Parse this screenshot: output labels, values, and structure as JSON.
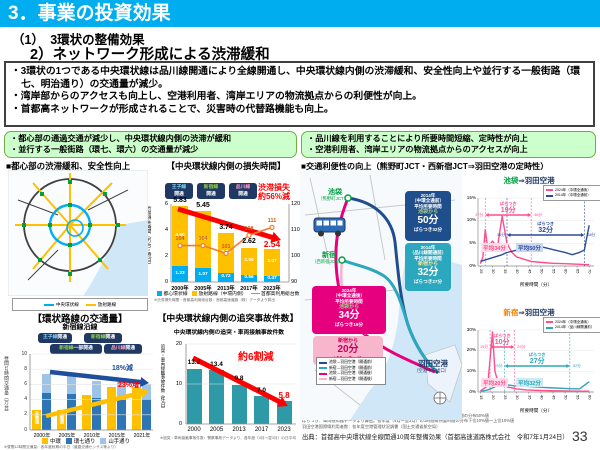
{
  "header": {
    "title": "3．事業の投資効果"
  },
  "subtitles": {
    "line1": "（1）　3環状の整備効果",
    "line2": "2）ネットワーク形成による渋滞緩和"
  },
  "summary": {
    "bullets": [
      "・3環状の1つである中央環状線は品川線開通により全線開通し、中央環状線内側の渋滞緩和、安全性向上や並行する一般街路（環七、明治通り）の交通量が減少。",
      "・湾岸部からのアクセスも向上し、空港利用者、湾岸エリアの物流拠点からの利便性が向上。",
      "・首都高ネットワークが形成されることで、災害時の代替路機能も向上。"
    ]
  },
  "left_panel": {
    "highlight_box": [
      "・都心部の通過交通が減少し、中央環状線内側の渋滞が緩和",
      "・並行する一般街路（環七、環六）の交通量が減少"
    ],
    "map_heading": "■都心部の渋滞緩和、安全性向上",
    "map_legend": [
      {
        "label": "中央環状線",
        "color": "#00AEEF"
      },
      {
        "label": "放射路線",
        "color": "#FFC000"
      }
    ]
  },
  "right_panel": {
    "highlight_box": [
      "・品川線を利用することにより所要時間短縮、定時性が向上",
      "・空港利用者、湾岸エリアの物流拠点からのアクセスが向上"
    ],
    "heading": "■交通利便性の向上（熊野町JCT・西新宿JCT⇒羽田空港の定時性）",
    "map": {
      "labels": {
        "ikebukuro": {
          "name": "池袋",
          "sub": "（熊野町JCT）",
          "color": "#00A040"
        },
        "shinjuku": {
          "name": "新宿",
          "sub": "（西新宿JCT）",
          "color": "#00A040"
        },
        "haneda": {
          "name": "羽田空港",
          "sub": "（空港中央出口）",
          "color": "#1F3864"
        }
      },
      "boxes": [
        {
          "year": "2014年",
          "cond": "（中環全通前）",
          "label": "平均所要時間",
          "from": "池袋から",
          "value": "50分",
          "spread": "ばらつき32分",
          "bg": "#1F4E8C",
          "fg": "#FFFFFF",
          "from_color": "#A9D18E"
        },
        {
          "year": "2014年",
          "cond": "（品川線開通前）",
          "label": "平均所要時間",
          "from": "新宿から",
          "value": "32分",
          "spread": "ばらつき27分",
          "bg": "#2BA7BE",
          "fg": "#FFFFFF",
          "from_color": "#FFE699"
        },
        {
          "year": "2024年",
          "cond": "（中環全通後）",
          "label": "平均所要時間",
          "from": "池袋から",
          "value": "34分",
          "spread": "ばらつき19分",
          "bg": "#E6007E",
          "fg": "#FFFFFF",
          "from_color": "#A9D18E"
        },
        {
          "from": "新宿から",
          "value": "20分",
          "spread": "ばらつき10分",
          "bg": "#F7B6CC",
          "fg": "#C7005F",
          "from_color": "#C7005F"
        }
      ],
      "legend": [
        {
          "label": "池袋→羽田空港（開通前）",
          "color": "#1F4E8C"
        },
        {
          "label": "新宿→羽田空港（開通前）",
          "color": "#2BA7BE"
        },
        {
          "label": "池袋→羽田空港（開通後）",
          "color": "#E6007E"
        },
        {
          "label": "新宿→羽田空港（開通後）",
          "color": "#F7B6CC"
        }
      ]
    },
    "footnotes": [
      "平均所要時間：車両感知器データより算出。各年度（4月～翌3月）の1時間毎所要時間の分布50%値",
      "ばらつき：車両感知器データより算出。各年度（4月～翌3月）の1時間毎所要時間の分布下位10%値～上位10%値",
      "羽田空港国際線利用者数：各年度空港管理状況調書（国土交通省航空局）"
    ]
  },
  "source": "出典：首都高中央環状線全線開通10周年整備効果（首都高速道路株式会社　令和7年1月24日）",
  "page_number": "33",
  "chart_data": [
    {
      "id": "ring-road-traffic",
      "type": "bar",
      "title": "【環状路線の交通量】",
      "subtitle": "新宿線沿線",
      "ylabel": "昼間12時間交通量（万台）",
      "ylim": [
        0,
        10
      ],
      "categories": [
        "2000年",
        "2005年",
        "2010年",
        "2015年",
        "2021年"
      ],
      "series": [
        {
          "name": "中環",
          "color": "#FFC000",
          "values": [
            null,
            null,
            4.6,
            5.6,
            5.7
          ],
          "bar_note": "未開通"
        },
        {
          "name": "環七通り",
          "color": "#2E75B6",
          "values": [
            4.9,
            4.8,
            4.2,
            4.2,
            4.1
          ]
        },
        {
          "name": "山手通り",
          "color": "#9DC3E6",
          "values": [
            2.5,
            2.5,
            2.3,
            2.1,
            2.0
          ]
        }
      ],
      "annotations": [
        {
          "name": "王子線",
          "suffix": "開通",
          "color": "#7FD1F5"
        },
        {
          "name": "新宿線",
          "suffix": "開通",
          "color": "#92D050"
        },
        {
          "name": "新宿線",
          "suffix": "一部開通",
          "color": "#92D050"
        },
        {
          "name": "品川線",
          "suffix": "開通",
          "color": "#FF9EC8"
        }
      ],
      "arrow_notes": [
        {
          "text": "18%減",
          "color": "#1F4E9C"
        },
        {
          "text": "23%増",
          "color": "#FF0000"
        }
      ],
      "footnote": "※昼間12時間交通量：各年度秋期の平日（道路交通センサス等より）"
    },
    {
      "id": "inner-loss-time",
      "type": "bar+line",
      "title": "【中央環状線内側の損失時間】",
      "ylabel_left": "渋滞損失時間（万台・時/日）",
      "ylabel_right": "首都高利用総台数（万台/日）",
      "ylim_left": [
        0,
        6
      ],
      "ylim_right": [
        90,
        120
      ],
      "categories": [
        "2000年",
        "2005年",
        "2013年",
        "2017年",
        "2023年"
      ],
      "series": [
        {
          "name": "都心環状線",
          "color": "#00AEEF",
          "values": [
            1.23,
            1.07,
            0.72,
            0.56,
            0.47
          ],
          "labels": [
            "1.23",
            "1.07",
            "0.72",
            "0.56",
            "0.47"
          ]
        },
        {
          "name": "放射路線（中環内側）",
          "color": "#FFC000",
          "values": [
            4.6,
            4.38,
            3.02,
            2.06,
            2.07
          ],
          "labels": [
            "4.60",
            "4.38",
            "3.02",
            "2.06",
            "2.07"
          ]
        }
      ],
      "totals": [
        "5.83",
        "5.45",
        "3.74",
        "2.62",
        "2.54"
      ],
      "line": {
        "name": "首都高利用総台数",
        "color": "#ED7D31",
        "values": [
          104,
          104,
          101,
          108,
          111
        ]
      },
      "annotations": [
        {
          "name": "王子線",
          "suffix": "開通",
          "color": "#7FD1F5"
        },
        {
          "name": "新宿線",
          "suffix": "開通",
          "color": "#92D050"
        },
        {
          "name": "品川線",
          "suffix": "開通",
          "color": "#FF9EC8"
        }
      ],
      "note": {
        "line1": "渋滞損失",
        "line2": "約56%減",
        "color": "#FF0000"
      },
      "footnote": "※渋滞損失時間・首都高利用総台数：首都高速道路（株）データより算出"
    },
    {
      "id": "rear-end-accidents",
      "type": "bar",
      "title": "【中央環状線内側の追突事故件数】",
      "subtitle": "中央環状線内側の追突・車両接触事故件数",
      "ylabel": "追突・車両接触事故件数（件/日）",
      "ylim": [
        0,
        20
      ],
      "categories": [
        "2000",
        "2005",
        "2013",
        "2017",
        "2023"
      ],
      "values": [
        13.8,
        13.4,
        9.8,
        7.0,
        5.8
      ],
      "value_labels": [
        "13.8",
        "13.4",
        "9.8",
        "7.0",
        "5.8"
      ],
      "bar_color": "#2E9AA8",
      "note": "約6割減",
      "highlight_last_color": "#FF0000",
      "footnote": "※追突・車両接触事故件数：警察事故データより、各年度（4月～翌3月）の日平均"
    },
    {
      "id": "ikebukuro-haneda-distribution",
      "type": "line",
      "title_from": "池袋",
      "title_rest": "⇒羽田空港",
      "title_from_color": "#00A040",
      "xlabel": "所要時間（分）",
      "ylabel": "割合",
      "yticks": [
        "0%",
        "5%",
        "10%",
        "15%"
      ],
      "xticks": [
        "25",
        "30",
        "35",
        "40",
        "45",
        "50",
        "55",
        "60",
        "65",
        "70"
      ],
      "series": [
        {
          "name": "2024年（中環全通後）",
          "color": "#FF4D8D",
          "mean": "平均34分",
          "mean_bg": "#FFDCE9",
          "points": [
            [
              25,
              0.5
            ],
            [
              26,
              2
            ],
            [
              27,
              8
            ],
            [
              28,
              4
            ],
            [
              30,
              5.5
            ],
            [
              32,
              4
            ],
            [
              34,
              11
            ],
            [
              36,
              5
            ],
            [
              38,
              3
            ],
            [
              40,
              2
            ],
            [
              43,
              1.5
            ],
            [
              46,
              1
            ],
            [
              50,
              0.8
            ],
            [
              55,
              0.6
            ],
            [
              60,
              0.5
            ],
            [
              65,
              0.4
            ],
            [
              70,
              0.3
            ]
          ],
          "spread": {
            "label": "ばらつき",
            "value": "19分",
            "from": "27分",
            "to": "46分",
            "from_min": 27,
            "to_min": 46
          }
        },
        {
          "name": "2014年（中環全通前）",
          "color": "#2B4B9B",
          "mean": "平均50分",
          "mean_bg": "#CBD7EE",
          "points": [
            [
              25,
              1
            ],
            [
              28,
              1.5
            ],
            [
              31,
              2
            ],
            [
              34,
              2.5
            ],
            [
              36,
              3
            ],
            [
              40,
              3.5
            ],
            [
              44,
              4
            ],
            [
              48,
              4.5
            ],
            [
              52,
              4
            ],
            [
              56,
              3.5
            ],
            [
              60,
              3
            ],
            [
              63,
              2.5
            ],
            [
              66,
              3
            ],
            [
              68,
              3.5
            ],
            [
              70,
              9
            ]
          ],
          "spread": {
            "label": "ばらつき",
            "value": "32分",
            "from": "36分",
            "to": "68分",
            "from_min": 36,
            "to_min": 68
          }
        }
      ]
    },
    {
      "id": "shinjuku-haneda-distribution",
      "type": "line",
      "title_from": "新宿",
      "title_rest": "⇒羽田空港",
      "title_from_color": "#F08300",
      "xlabel": "所要時間（分）",
      "ylabel": "割合",
      "yticks": [
        "0%",
        "10%",
        "20%",
        "30%"
      ],
      "xticks": [
        "15",
        "20",
        "25",
        "30",
        "35",
        "40",
        "45",
        "50",
        "55",
        "60"
      ],
      "series": [
        {
          "name": "2024年（中環全通後）",
          "color": "#FF4D8D",
          "mean": "平均20分",
          "mean_bg": "#FFDCE9",
          "points": [
            [
              15,
              0.5
            ],
            [
              18,
              3
            ],
            [
              20,
              29
            ],
            [
              21,
              10
            ],
            [
              22,
              6
            ],
            [
              24,
              4
            ],
            [
              26,
              2.5
            ],
            [
              28,
              2
            ],
            [
              30,
              1.5
            ],
            [
              34,
              1
            ],
            [
              38,
              0.8
            ],
            [
              44,
              0.6
            ],
            [
              50,
              0.5
            ],
            [
              55,
              0.4
            ],
            [
              60,
              0.4
            ]
          ],
          "spread": {
            "label": "ばらつき",
            "value": "10分",
            "from": "19分",
            "to": "29分",
            "from_min": 19,
            "to_min": 29
          }
        },
        {
          "name": "2014年（品川線開通前）",
          "color": "#2BA7BE",
          "mean": "平均32分",
          "mean_bg": "#CDEBF0",
          "points": [
            [
              15,
              0.3
            ],
            [
              18,
              1
            ],
            [
              21,
              2.5
            ],
            [
              24,
              5
            ],
            [
              26,
              3.5
            ],
            [
              29,
              3
            ],
            [
              33,
              2.8
            ],
            [
              37,
              2.5
            ],
            [
              41,
              2.2
            ],
            [
              45,
              2
            ],
            [
              49,
              1.8
            ],
            [
              52,
              1.6
            ],
            [
              56,
              1.5
            ],
            [
              60,
              5
            ]
          ],
          "spread": {
            "label": "ばらつき",
            "value": "27分",
            "from": "25分",
            "to": "52分",
            "from_min": 25,
            "to_min": 52
          }
        }
      ]
    }
  ]
}
